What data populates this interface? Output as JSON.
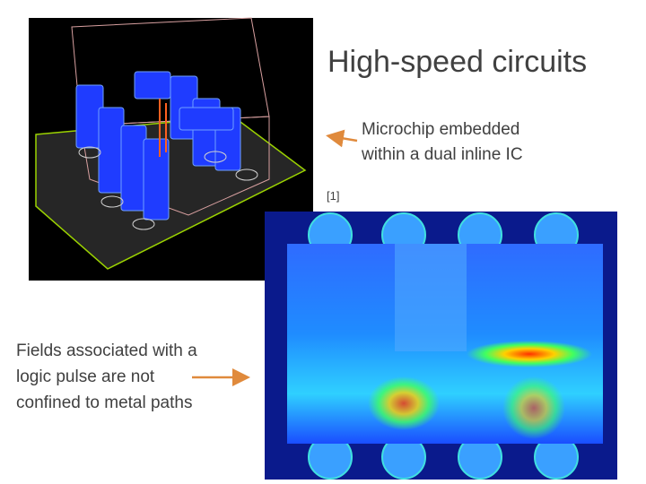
{
  "slide": {
    "title": "High-speed circuits",
    "chip_caption": {
      "lines": [
        "Microchip embedded",
        "within a dual inline IC"
      ]
    },
    "reference": "[1]",
    "field_caption": {
      "lines": [
        "Fields associated with a",
        "logic pulse are not",
        "confined to metal paths"
      ]
    }
  }
}
